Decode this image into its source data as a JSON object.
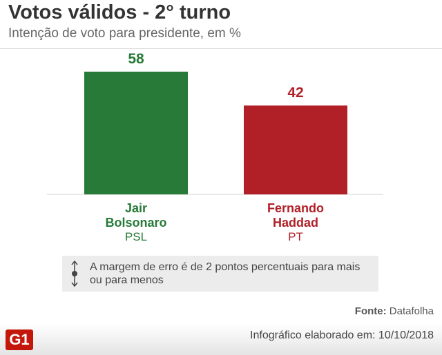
{
  "chart_data": {
    "type": "bar",
    "title": "Votos válidos - 2° turno",
    "subtitle": "Intenção de voto para presidente, em %",
    "categories": [
      "Jair Bolsonaro",
      "Fernando Haddad"
    ],
    "parties": [
      "PSL",
      "PT"
    ],
    "values": [
      58,
      42
    ],
    "colors": [
      "#277a38",
      "#b11f27"
    ],
    "note": "A margem de erro é de 2 pontos percentuais para mais ou para menos",
    "source_label": "Fonte:",
    "source": "Datafolha",
    "footer": "Infográfico elaborado em: 10/10/2018",
    "logo": "G1"
  }
}
